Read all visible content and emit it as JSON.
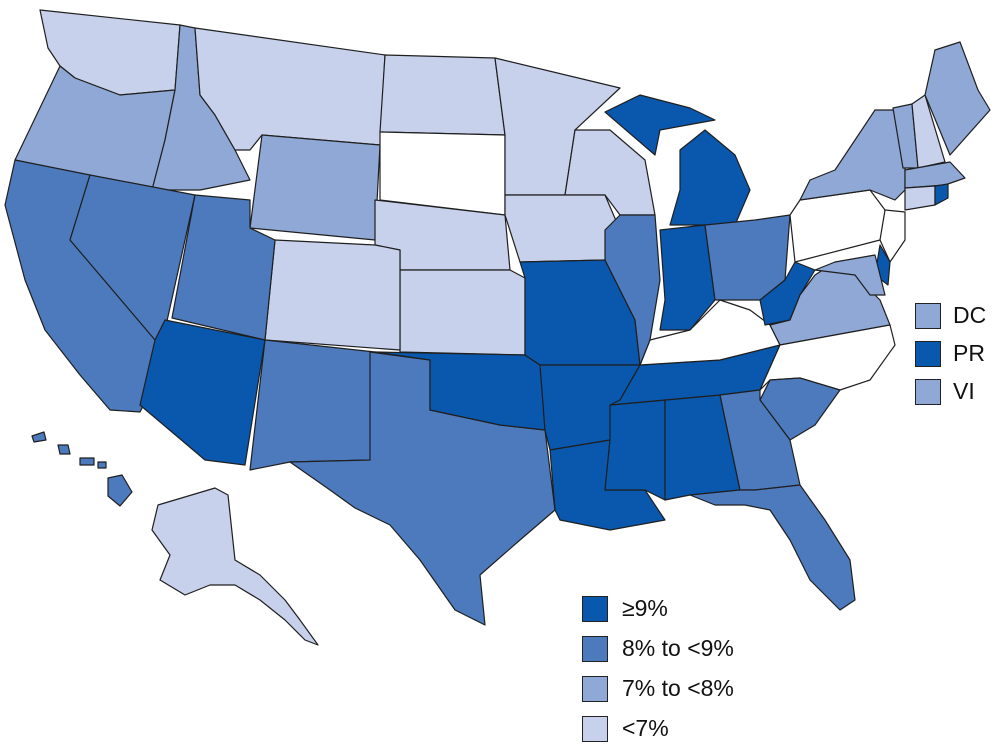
{
  "classes": {
    "c9": {
      "label": "≥9%",
      "color": "#0a58ad"
    },
    "c8": {
      "label": "8% to <9%",
      "color": "#4c7abd"
    },
    "c7": {
      "label": "7% to <8%",
      "color": "#8fa8d6"
    },
    "clt": {
      "label": "<7%",
      "color": "#c7d1ec"
    },
    "nd": {
      "color": "#ffffff"
    }
  },
  "legend_order": [
    "c9",
    "c8",
    "c7",
    "clt"
  ],
  "territories": [
    {
      "label": "DC",
      "class": "c7"
    },
    {
      "label": "PR",
      "class": "c9"
    },
    {
      "label": "VI",
      "class": "c7"
    }
  ],
  "states": {
    "WA": "clt",
    "OR": "c7",
    "ID": "c7",
    "MT": "clt",
    "WY": "c7",
    "ND": "clt",
    "SD": "nd",
    "NE": "clt",
    "MN": "clt",
    "WI": "clt",
    "IA": "clt",
    "KS": "clt",
    "CO": "clt",
    "CA": "c8",
    "NV": "c8",
    "UT": "c8",
    "AZ": "c9",
    "NM": "c8",
    "TX": "c8",
    "OK": "c9",
    "MO": "c9",
    "AR": "c9",
    "LA": "c9",
    "MS": "c9",
    "AL": "c9",
    "TN": "c9",
    "KY": "nd",
    "IL": "c8",
    "IN": "c9",
    "MI": "c9",
    "OH": "c8",
    "WV": "c9",
    "VA": "c7",
    "NC": "nd",
    "SC": "c8",
    "GA": "c8",
    "FL": "c8",
    "PA": "nd",
    "NY": "c7",
    "VT": "c7",
    "NH": "clt",
    "ME": "c7",
    "MA": "c7",
    "RI": "c9",
    "CT": "clt",
    "NJ": "nd",
    "DE": "c9",
    "MD": "c7",
    "AK": "clt",
    "HI": "c8"
  }
}
